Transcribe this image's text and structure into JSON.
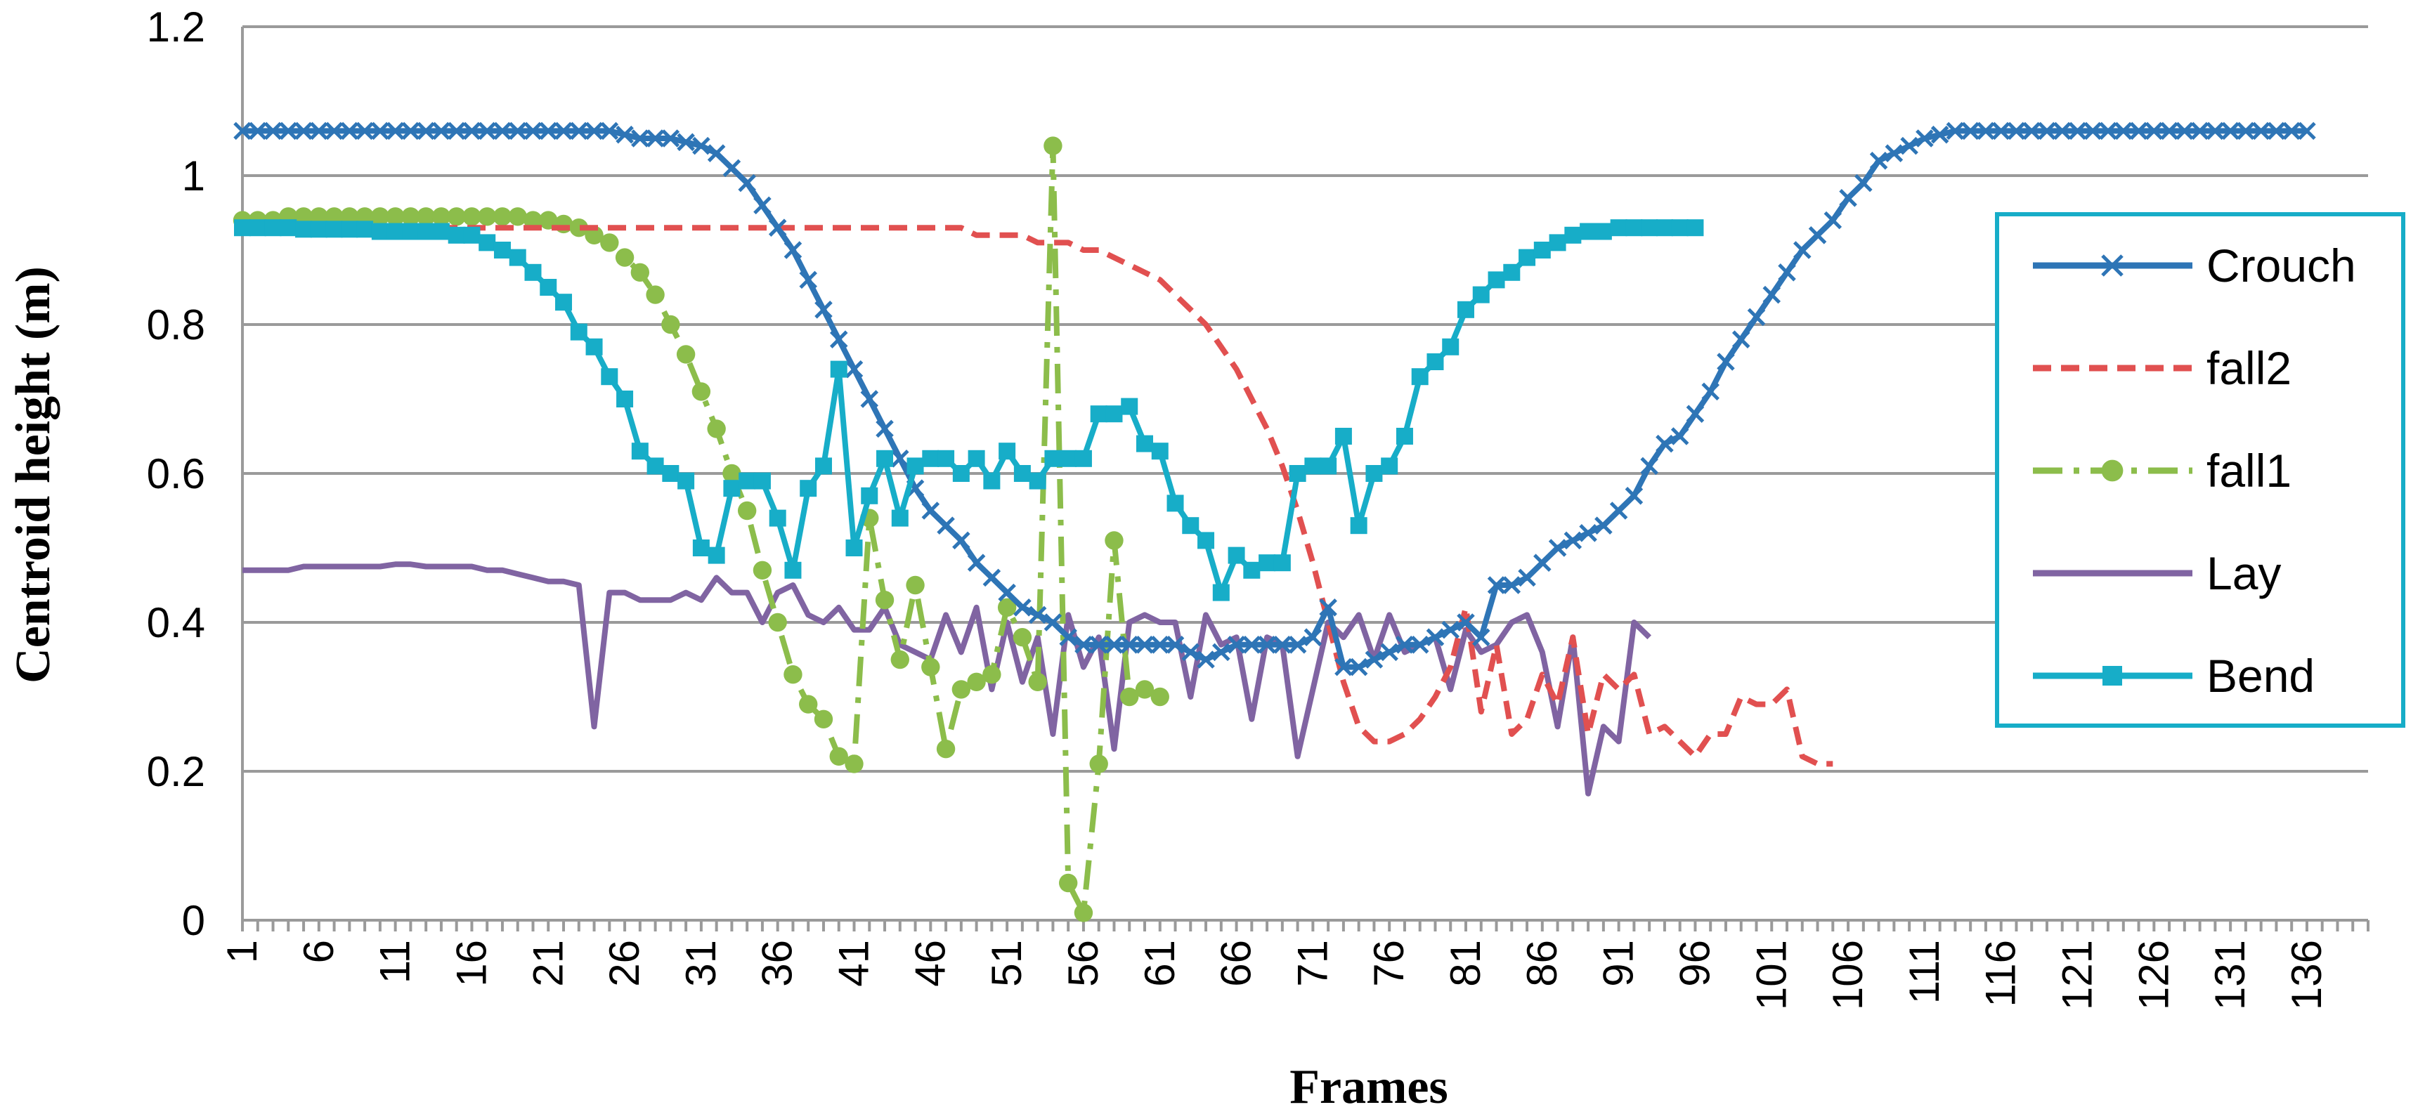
{
  "chart_data": {
    "type": "line",
    "title": "",
    "xlabel": "Frames",
    "ylabel": "Centroid height (m)",
    "ylim": [
      0,
      1.2
    ],
    "yticks": [
      "0",
      "0.2",
      "0.4",
      "0.6",
      "0.8",
      "1",
      "1.2"
    ],
    "xticks": [
      "1",
      "6",
      "11",
      "16",
      "21",
      "26",
      "31",
      "36",
      "41",
      "46",
      "51",
      "56",
      "61",
      "66",
      "71",
      "76",
      "81",
      "86",
      "91",
      "96",
      "101",
      "106",
      "111",
      "116",
      "121",
      "126",
      "131",
      "136"
    ],
    "x_max": 140,
    "grid": "horizontal",
    "legend_position": "right",
    "colors": {
      "Crouch": "#2e75b6",
      "fall2": "#e15050",
      "fall1": "#8cbd4b",
      "Lay": "#8064a2",
      "Bend": "#17adc8",
      "legend_border": "#17adc8",
      "grid": "#9a9a9a"
    },
    "series": [
      {
        "name": "Crouch",
        "marker": "x",
        "style": "solid",
        "values": [
          1.06,
          1.06,
          1.06,
          1.06,
          1.06,
          1.06,
          1.06,
          1.06,
          1.06,
          1.06,
          1.06,
          1.06,
          1.06,
          1.06,
          1.06,
          1.06,
          1.06,
          1.06,
          1.06,
          1.06,
          1.06,
          1.06,
          1.06,
          1.06,
          1.06,
          1.055,
          1.05,
          1.05,
          1.05,
          1.045,
          1.04,
          1.03,
          1.01,
          0.99,
          0.96,
          0.93,
          0.9,
          0.86,
          0.82,
          0.78,
          0.74,
          0.7,
          0.66,
          0.62,
          0.58,
          0.55,
          0.53,
          0.51,
          0.48,
          0.46,
          0.44,
          0.42,
          0.41,
          0.4,
          0.38,
          0.37,
          0.37,
          0.37,
          0.37,
          0.37,
          0.37,
          0.37,
          0.36,
          0.35,
          0.36,
          0.37,
          0.37,
          0.37,
          0.37,
          0.37,
          0.38,
          0.42,
          0.34,
          0.34,
          0.35,
          0.36,
          0.37,
          0.37,
          0.38,
          0.39,
          0.4,
          0.38,
          0.45,
          0.45,
          0.46,
          0.48,
          0.5,
          0.51,
          0.52,
          0.53,
          0.55,
          0.57,
          0.61,
          0.64,
          0.65,
          0.68,
          0.71,
          0.75,
          0.78,
          0.81,
          0.84,
          0.87,
          0.9,
          0.92,
          0.94,
          0.97,
          0.99,
          1.02,
          1.03,
          1.04,
          1.05,
          1.055,
          1.06,
          1.06,
          1.06,
          1.06,
          1.06,
          1.06,
          1.06,
          1.06,
          1.06,
          1.06,
          1.06,
          1.06,
          1.06,
          1.06,
          1.06,
          1.06,
          1.06,
          1.06,
          1.06,
          1.06,
          1.06,
          1.06,
          1.06,
          1.06
        ]
      },
      {
        "name": "fall2",
        "marker": "none",
        "style": "dashed",
        "values": [
          0.93,
          0.93,
          0.93,
          0.93,
          0.93,
          0.93,
          0.93,
          0.93,
          0.93,
          0.93,
          0.93,
          0.93,
          0.93,
          0.93,
          0.93,
          0.93,
          0.93,
          0.93,
          0.93,
          0.93,
          0.93,
          0.93,
          0.93,
          0.93,
          0.93,
          0.93,
          0.93,
          0.93,
          0.93,
          0.93,
          0.93,
          0.93,
          0.93,
          0.93,
          0.93,
          0.93,
          0.93,
          0.93,
          0.93,
          0.93,
          0.93,
          0.93,
          0.93,
          0.93,
          0.93,
          0.93,
          0.93,
          0.93,
          0.92,
          0.92,
          0.92,
          0.92,
          0.91,
          0.91,
          0.91,
          0.9,
          0.9,
          0.89,
          0.88,
          0.87,
          0.86,
          0.84,
          0.82,
          0.8,
          0.77,
          0.74,
          0.7,
          0.66,
          0.61,
          0.55,
          0.48,
          0.4,
          0.32,
          0.26,
          0.24,
          0.24,
          0.25,
          0.27,
          0.3,
          0.34,
          0.42,
          0.28,
          0.37,
          0.25,
          0.27,
          0.33,
          0.29,
          0.38,
          0.25,
          0.33,
          0.31,
          0.33,
          0.25,
          0.26,
          0.24,
          0.22,
          0.25,
          0.25,
          0.3,
          0.29,
          0.29,
          0.31,
          0.22,
          0.21,
          0.21
        ]
      },
      {
        "name": "fall1",
        "marker": "circle",
        "style": "dashdot",
        "values": [
          0.94,
          0.94,
          0.94,
          0.945,
          0.945,
          0.945,
          0.945,
          0.945,
          0.945,
          0.945,
          0.945,
          0.945,
          0.945,
          0.945,
          0.945,
          0.945,
          0.945,
          0.945,
          0.945,
          0.94,
          0.94,
          0.935,
          0.93,
          0.92,
          0.91,
          0.89,
          0.87,
          0.84,
          0.8,
          0.76,
          0.71,
          0.66,
          0.6,
          0.55,
          0.47,
          0.4,
          0.33,
          0.29,
          0.27,
          0.22,
          0.21,
          0.54,
          0.43,
          0.35,
          0.45,
          0.34,
          0.23,
          0.31,
          0.32,
          0.33,
          0.42,
          0.38,
          0.32,
          1.04,
          0.05,
          0.01,
          0.21,
          0.51,
          0.3,
          0.31,
          0.3
        ]
      },
      {
        "name": "Lay",
        "marker": "none",
        "style": "solid",
        "values": [
          0.47,
          0.47,
          0.47,
          0.47,
          0.475,
          0.475,
          0.475,
          0.475,
          0.475,
          0.475,
          0.478,
          0.478,
          0.475,
          0.475,
          0.475,
          0.475,
          0.47,
          0.47,
          0.465,
          0.46,
          0.455,
          0.455,
          0.45,
          0.26,
          0.44,
          0.44,
          0.43,
          0.43,
          0.43,
          0.44,
          0.43,
          0.46,
          0.44,
          0.44,
          0.4,
          0.44,
          0.45,
          0.41,
          0.4,
          0.42,
          0.39,
          0.39,
          0.42,
          0.37,
          0.36,
          0.35,
          0.41,
          0.36,
          0.42,
          0.31,
          0.4,
          0.32,
          0.38,
          0.25,
          0.41,
          0.34,
          0.38,
          0.23,
          0.4,
          0.41,
          0.4,
          0.4,
          0.3,
          0.41,
          0.37,
          0.38,
          0.27,
          0.38,
          0.37,
          0.22,
          0.31,
          0.4,
          0.38,
          0.41,
          0.35,
          0.41,
          0.36,
          0.37,
          0.38,
          0.31,
          0.39,
          0.36,
          0.37,
          0.4,
          0.41,
          0.36,
          0.26,
          0.38,
          0.17,
          0.26,
          0.24,
          0.4,
          0.38
        ]
      },
      {
        "name": "Bend",
        "marker": "square",
        "style": "solid",
        "values": [
          0.93,
          0.93,
          0.93,
          0.93,
          0.928,
          0.928,
          0.928,
          0.928,
          0.928,
          0.925,
          0.925,
          0.925,
          0.925,
          0.925,
          0.92,
          0.92,
          0.91,
          0.9,
          0.89,
          0.87,
          0.85,
          0.83,
          0.79,
          0.77,
          0.73,
          0.7,
          0.63,
          0.61,
          0.6,
          0.59,
          0.5,
          0.49,
          0.58,
          0.59,
          0.59,
          0.54,
          0.47,
          0.58,
          0.61,
          0.74,
          0.5,
          0.57,
          0.62,
          0.54,
          0.61,
          0.62,
          0.62,
          0.6,
          0.62,
          0.59,
          0.63,
          0.6,
          0.59,
          0.62,
          0.62,
          0.62,
          0.68,
          0.68,
          0.69,
          0.64,
          0.63,
          0.56,
          0.53,
          0.51,
          0.44,
          0.49,
          0.47,
          0.48,
          0.48,
          0.6,
          0.61,
          0.61,
          0.65,
          0.53,
          0.6,
          0.61,
          0.65,
          0.73,
          0.75,
          0.77,
          0.82,
          0.84,
          0.86,
          0.87,
          0.89,
          0.9,
          0.91,
          0.92,
          0.925,
          0.925,
          0.93,
          0.93,
          0.93,
          0.93,
          0.93,
          0.93
        ]
      }
    ]
  }
}
